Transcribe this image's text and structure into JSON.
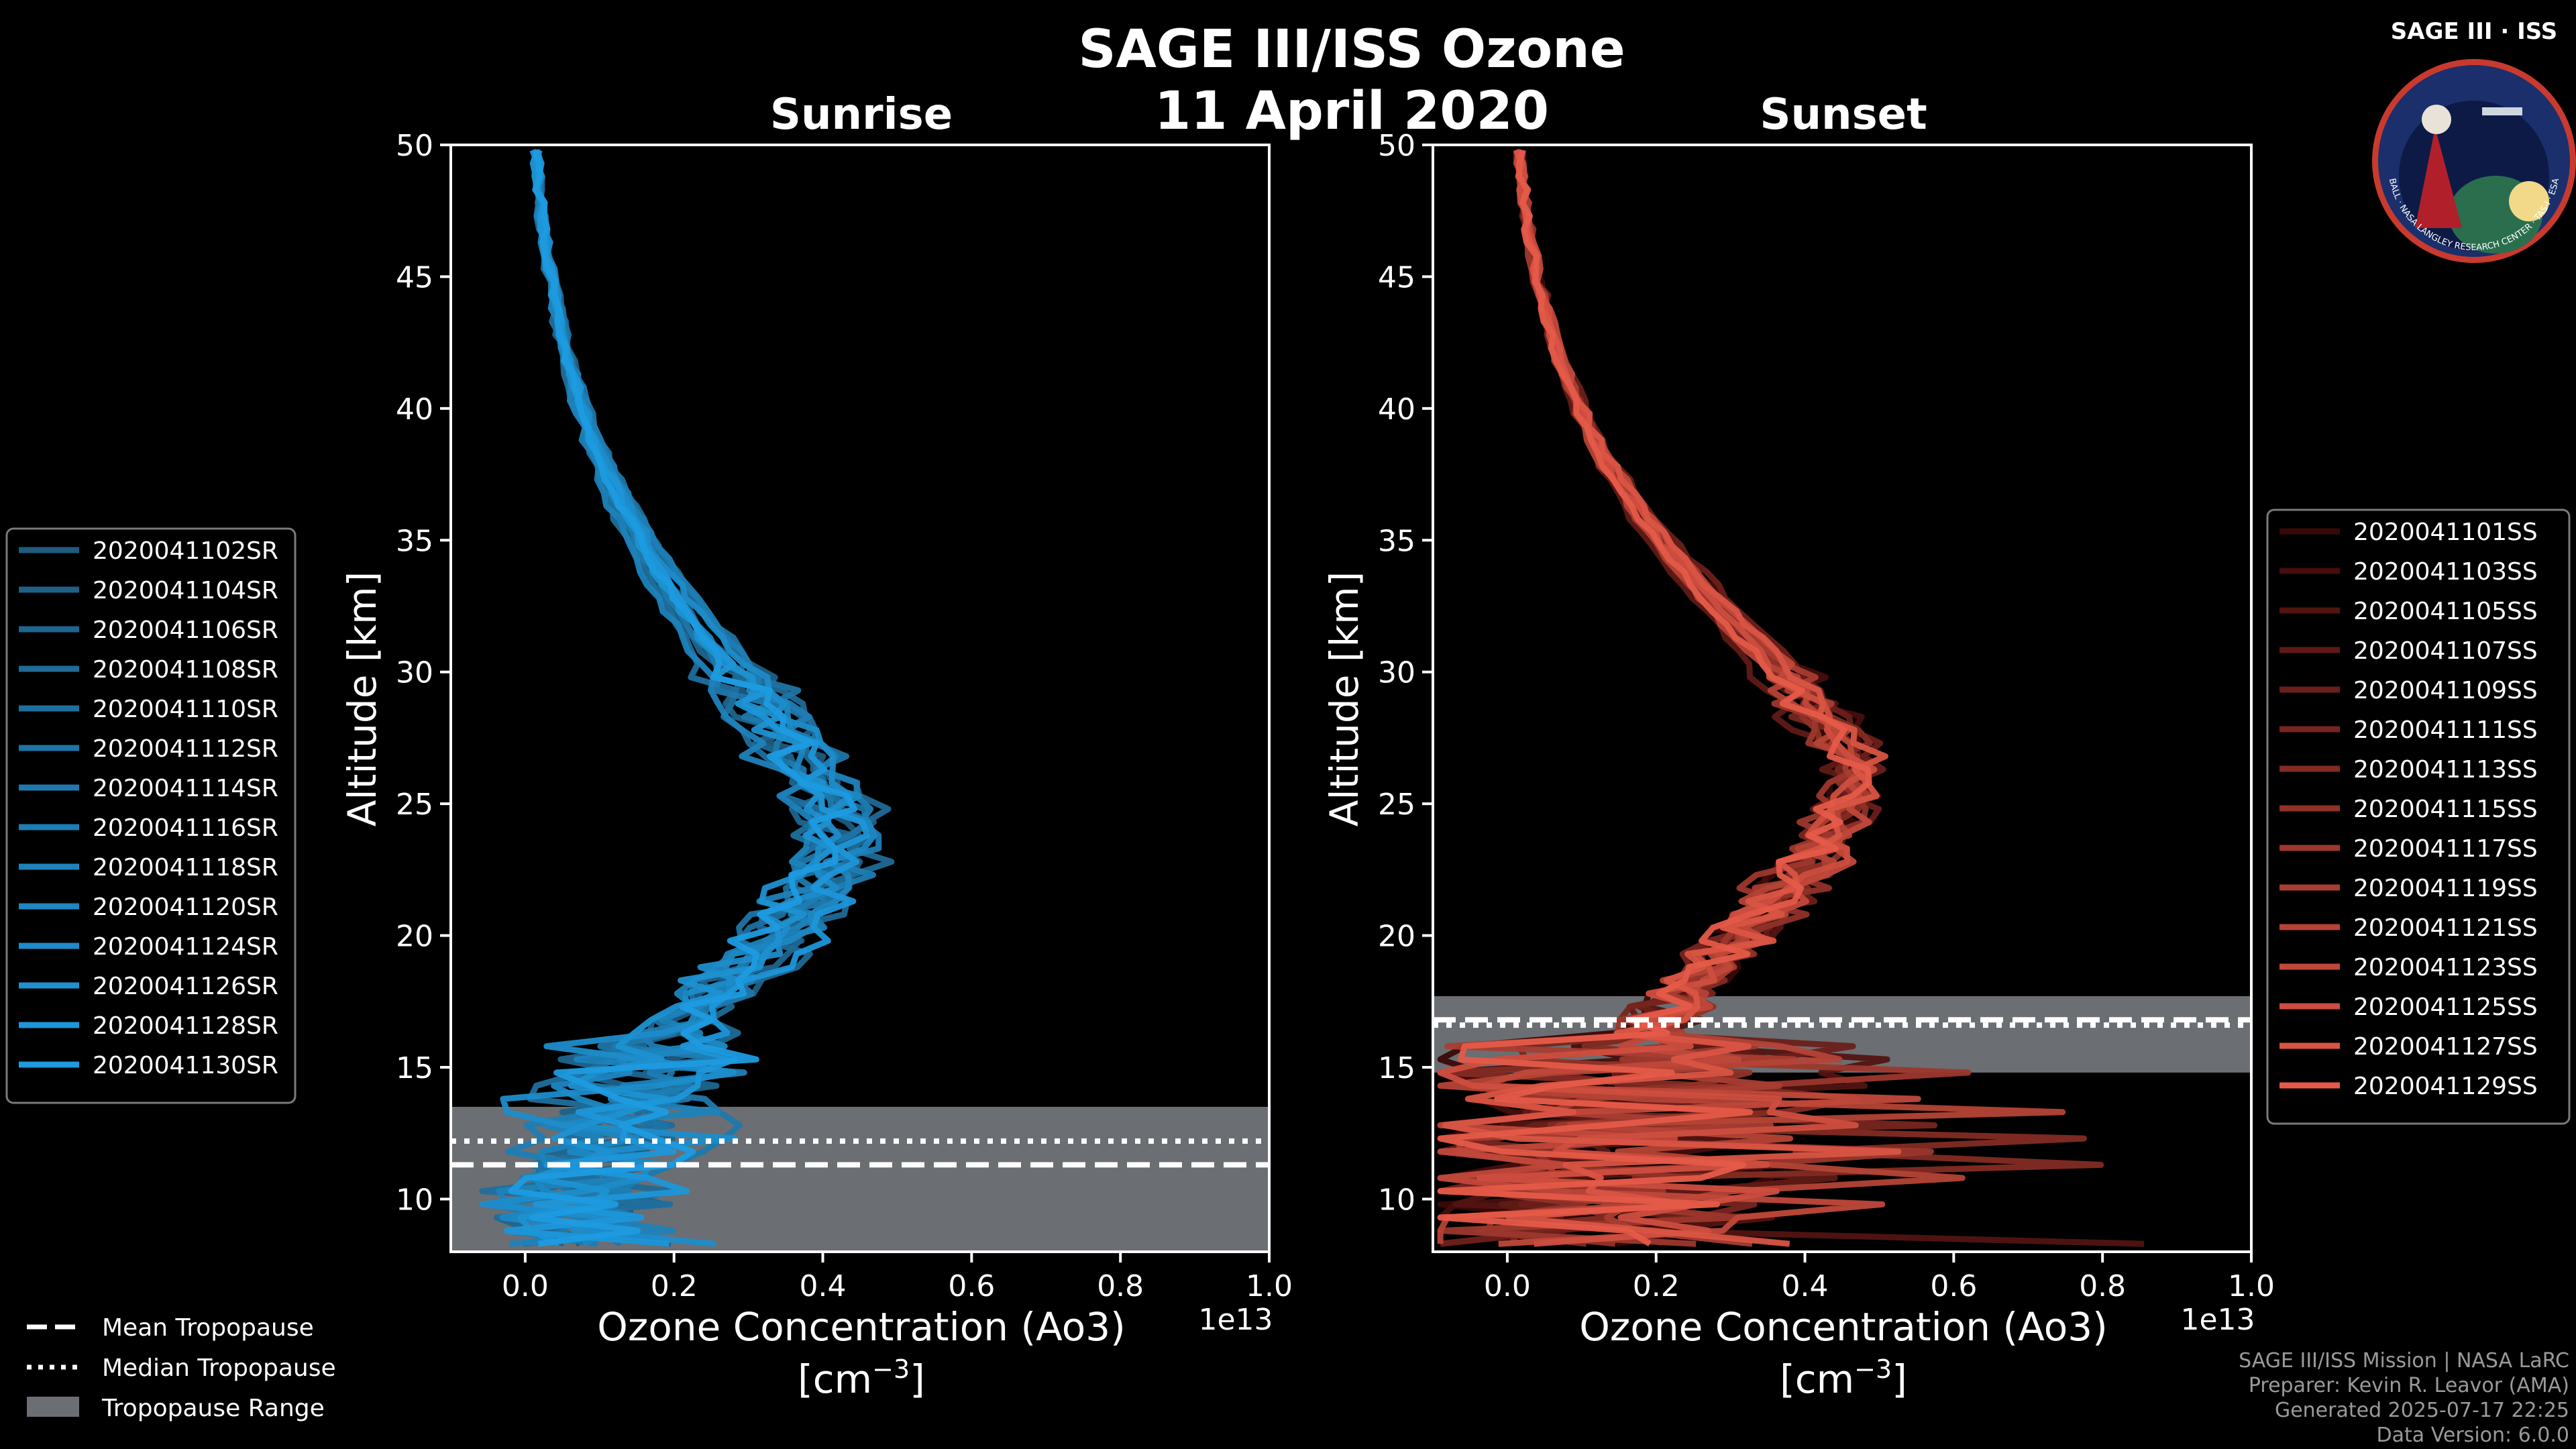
{
  "figure": {
    "title_line1": "SAGE III/ISS Ozone",
    "title_line2": "11 April 2020",
    "logo_text": "SAGE III · ISS",
    "logo_ring_text": "BALL · NASA LANGLEY RESEARCH CENTER · TAS-I · ESA",
    "credits": [
      "SAGE III/ISS Mission | NASA LaRC",
      "Preparer: Kevin R. Leavor (AMA)",
      "Generated 2025-07-17 22:25",
      "Data Version: 6.0.0"
    ],
    "tropopause_legend": [
      {
        "label": "Mean Tropopause",
        "style": "dashed"
      },
      {
        "label": "Median Tropopause",
        "style": "dotted"
      },
      {
        "label": "Tropopause Range",
        "style": "patch"
      }
    ]
  },
  "chart_data": [
    {
      "type": "line",
      "title": "Sunrise",
      "xlabel": "Ozone Concentration (Ao3)",
      "xlabel_units": "[cm",
      "xlabel_exp": "−3",
      "xlabel_units_close": "]",
      "ylabel": "Altitude [km]",
      "x_offset_label": "1e13",
      "xlim": [
        -0.1,
        1.0
      ],
      "ylim": [
        8,
        50
      ],
      "xticks": [
        0.0,
        0.2,
        0.4,
        0.6,
        0.8,
        1.0
      ],
      "xtick_labels": [
        "0.0",
        "0.2",
        "0.4",
        "0.6",
        "0.8",
        "1.0"
      ],
      "yticks": [
        10,
        15,
        20,
        25,
        30,
        35,
        40,
        45,
        50
      ],
      "ytick_labels": [
        "10",
        "15",
        "20",
        "25",
        "30",
        "35",
        "40",
        "45",
        "50"
      ],
      "tropopause_range": [
        8,
        13.5
      ],
      "mean_tropopause": 11.3,
      "median_tropopause": 12.2,
      "legend_position": "left",
      "series_color_from": "#1f5b80",
      "series_color_to": "#1e9be0",
      "series": [
        {
          "name": "2020041102SR",
          "peak": 0.43,
          "peak_alt": 24.5,
          "low_x": 0.05,
          "low_amp": 0.1,
          "seed": 1
        },
        {
          "name": "2020041104SR",
          "peak": 0.45,
          "peak_alt": 25.0,
          "low_x": 0.08,
          "low_amp": 0.12,
          "seed": 2
        },
        {
          "name": "2020041106SR",
          "peak": 0.41,
          "peak_alt": 24.0,
          "low_x": 0.06,
          "low_amp": 0.14,
          "seed": 3
        },
        {
          "name": "2020041108SR",
          "peak": 0.47,
          "peak_alt": 24.5,
          "low_x": 0.1,
          "low_amp": 0.12,
          "seed": 4
        },
        {
          "name": "2020041110SR",
          "peak": 0.4,
          "peak_alt": 23.5,
          "low_x": 0.04,
          "low_amp": 0.16,
          "seed": 5
        },
        {
          "name": "2020041112SR",
          "peak": 0.44,
          "peak_alt": 25.5,
          "low_x": 0.07,
          "low_amp": 0.1,
          "seed": 6
        },
        {
          "name": "2020041114SR",
          "peak": 0.42,
          "peak_alt": 24.0,
          "low_x": 0.09,
          "low_amp": 0.18,
          "seed": 7
        },
        {
          "name": "2020041116SR",
          "peak": 0.46,
          "peak_alt": 24.8,
          "low_x": 0.05,
          "low_amp": 0.13,
          "seed": 8
        },
        {
          "name": "2020041118SR",
          "peak": 0.39,
          "peak_alt": 23.8,
          "low_x": 0.08,
          "low_amp": 0.15,
          "seed": 9
        },
        {
          "name": "2020041120SR",
          "peak": 0.44,
          "peak_alt": 24.2,
          "low_x": 0.06,
          "low_amp": 0.12,
          "seed": 10
        },
        {
          "name": "2020041124SR",
          "peak": 0.43,
          "peak_alt": 25.2,
          "low_x": 0.07,
          "low_amp": 0.2,
          "seed": 11
        },
        {
          "name": "2020041126SR",
          "peak": 0.41,
          "peak_alt": 24.6,
          "low_x": 0.05,
          "low_amp": 0.11,
          "seed": 12
        },
        {
          "name": "2020041128SR",
          "peak": 0.45,
          "peak_alt": 23.9,
          "low_x": 0.09,
          "low_amp": 0.14,
          "seed": 13
        },
        {
          "name": "2020041130SR",
          "peak": 0.42,
          "peak_alt": 24.4,
          "low_x": 0.06,
          "low_amp": 0.16,
          "seed": 14
        }
      ]
    },
    {
      "type": "line",
      "title": "Sunset",
      "xlabel": "Ozone Concentration (Ao3)",
      "xlabel_units": "[cm",
      "xlabel_exp": "−3",
      "xlabel_units_close": "]",
      "ylabel": "Altitude [km]",
      "x_offset_label": "1e13",
      "xlim": [
        -0.1,
        1.0
      ],
      "ylim": [
        8,
        50
      ],
      "xticks": [
        0.0,
        0.2,
        0.4,
        0.6,
        0.8,
        1.0
      ],
      "xtick_labels": [
        "0.0",
        "0.2",
        "0.4",
        "0.6",
        "0.8",
        "1.0"
      ],
      "yticks": [
        10,
        15,
        20,
        25,
        30,
        35,
        40,
        45,
        50
      ],
      "ytick_labels": [
        "10",
        "15",
        "20",
        "25",
        "30",
        "35",
        "40",
        "45",
        "50"
      ],
      "tropopause_range": [
        14.8,
        17.7
      ],
      "mean_tropopause": 16.8,
      "median_tropopause": 16.6,
      "legend_position": "right",
      "series_color_from": "#3a0808",
      "series_color_to": "#e55a48",
      "series": [
        {
          "name": "2020041101SS",
          "peak": 0.46,
          "peak_alt": 26.5,
          "low_x": 0.06,
          "low_amp": 0.3,
          "seed": 21
        },
        {
          "name": "2020041103SS",
          "peak": 0.48,
          "peak_alt": 27.0,
          "low_x": 0.05,
          "low_amp": 0.25,
          "seed": 22
        },
        {
          "name": "2020041105SS",
          "peak": 0.47,
          "peak_alt": 26.8,
          "low_x": 0.07,
          "low_amp": 0.35,
          "seed": 23
        },
        {
          "name": "2020041107SS",
          "peak": 0.45,
          "peak_alt": 26.2,
          "low_x": 0.04,
          "low_amp": 0.2,
          "seed": 24
        },
        {
          "name": "2020041109SS",
          "peak": 0.49,
          "peak_alt": 27.2,
          "low_x": 0.06,
          "low_amp": 0.28,
          "seed": 25
        },
        {
          "name": "2020041111SS",
          "peak": 0.46,
          "peak_alt": 26.6,
          "low_x": 0.05,
          "low_amp": 0.22,
          "seed": 26
        },
        {
          "name": "2020041113SS",
          "peak": 0.47,
          "peak_alt": 26.9,
          "low_x": 0.07,
          "low_amp": 0.32,
          "seed": 27
        },
        {
          "name": "2020041115SS",
          "peak": 0.48,
          "peak_alt": 26.4,
          "low_x": 0.06,
          "low_amp": 0.18,
          "seed": 28
        },
        {
          "name": "2020041117SS",
          "peak": 0.45,
          "peak_alt": 26.7,
          "low_x": 0.05,
          "low_amp": 0.26,
          "seed": 29
        },
        {
          "name": "2020041119SS",
          "peak": 0.47,
          "peak_alt": 27.1,
          "low_x": 0.06,
          "low_amp": 0.24,
          "seed": 30
        },
        {
          "name": "2020041121SS",
          "peak": 0.46,
          "peak_alt": 26.3,
          "low_x": 0.04,
          "low_amp": 0.3,
          "seed": 31
        },
        {
          "name": "2020041123SS",
          "peak": 0.49,
          "peak_alt": 26.8,
          "low_x": 0.07,
          "low_amp": 0.22,
          "seed": 32
        },
        {
          "name": "2020041125SS",
          "peak": 0.47,
          "peak_alt": 26.6,
          "low_x": 0.05,
          "low_amp": 0.27,
          "seed": 33
        },
        {
          "name": "2020041127SS",
          "peak": 0.48,
          "peak_alt": 27.0,
          "low_x": 0.06,
          "low_amp": 0.2,
          "seed": 34
        },
        {
          "name": "2020041129SS",
          "peak": 0.46,
          "peak_alt": 26.5,
          "low_x": 0.05,
          "low_amp": 0.23,
          "seed": 35
        }
      ]
    }
  ]
}
